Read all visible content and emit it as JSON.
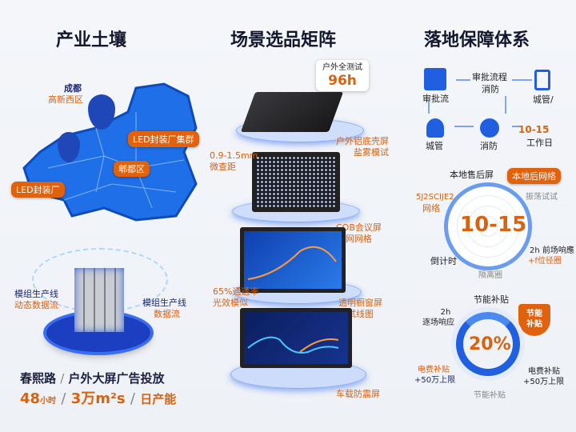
{
  "columns": {
    "industry": {
      "title": "产业土壤",
      "map": {
        "city": "成都",
        "district": "高新西区",
        "cluster_label": "LED封装厂集群",
        "pidu_label": "郫都区",
        "factory_label": "LED封装厂"
      },
      "production": {
        "left_title": "模组生产线",
        "left_sub": "动态数据流",
        "right_title": "模组生产线",
        "right_sub": "数据流"
      },
      "stats": {
        "road": "春熙路",
        "sep1": "/",
        "usage": "户外大屏广告投放",
        "hours_value": "48",
        "hours_unit": "小时",
        "sep2": "/",
        "area_value": "3万m²s",
        "sep3": "/",
        "capacity": "日产能"
      }
    },
    "scenarios": {
      "title": "场景选品矩阵",
      "test_badge": {
        "label": "户外全测试",
        "value": "96h"
      },
      "products": [
        {
          "name": "户外铝底壳屏",
          "sub": "盐雾模试"
        },
        {
          "spec": "0.9-1.5mm",
          "spec_sub": "微查距",
          "name": "COB会议屏",
          "sub": "网网格"
        },
        {
          "spec": "65%通透率",
          "spec_sub": "光效模似",
          "name": "透明橱窗屏",
          "sub": "试线图"
        },
        {
          "name": "车载防震屏"
        }
      ]
    },
    "assurance": {
      "title": "落地保障体系",
      "flow": {
        "approval": "审批流",
        "process_top": "审批流程",
        "process_bottom": "消防",
        "urban_mgmt_right": "城管/",
        "urban_mgmt": "城管",
        "fire": "消防",
        "days_value": "10-15",
        "days_unit": "工作日"
      },
      "service": {
        "top": "本地售后屏",
        "badge": "本地后网络",
        "right_top": "振荡试试",
        "left_top": "5J2SCIJE2",
        "left_bottom": "网络",
        "center_value": "10-15",
        "right_bottom_1": "2h 前场响應",
        "right_bottom_2": "+f位径圈",
        "left": "倒计时",
        "bottom": "隔离圈"
      },
      "subsidy": {
        "top": "节能补贴",
        "shield": "节能补贴",
        "left_top_1": "2h",
        "left_top_2": "逐场响应",
        "center_value": "20%",
        "left_bottom_1": "电费补贴",
        "left_bottom_2": "+50万上限",
        "right_bottom_1": "电费补贴",
        "right_bottom_2": "+50万上限",
        "bottom": "节能补贴"
      }
    }
  },
  "colors": {
    "accent_orange": "#e0620c",
    "primary_blue": "#1f5fe0",
    "navy": "#1d2a6e"
  }
}
